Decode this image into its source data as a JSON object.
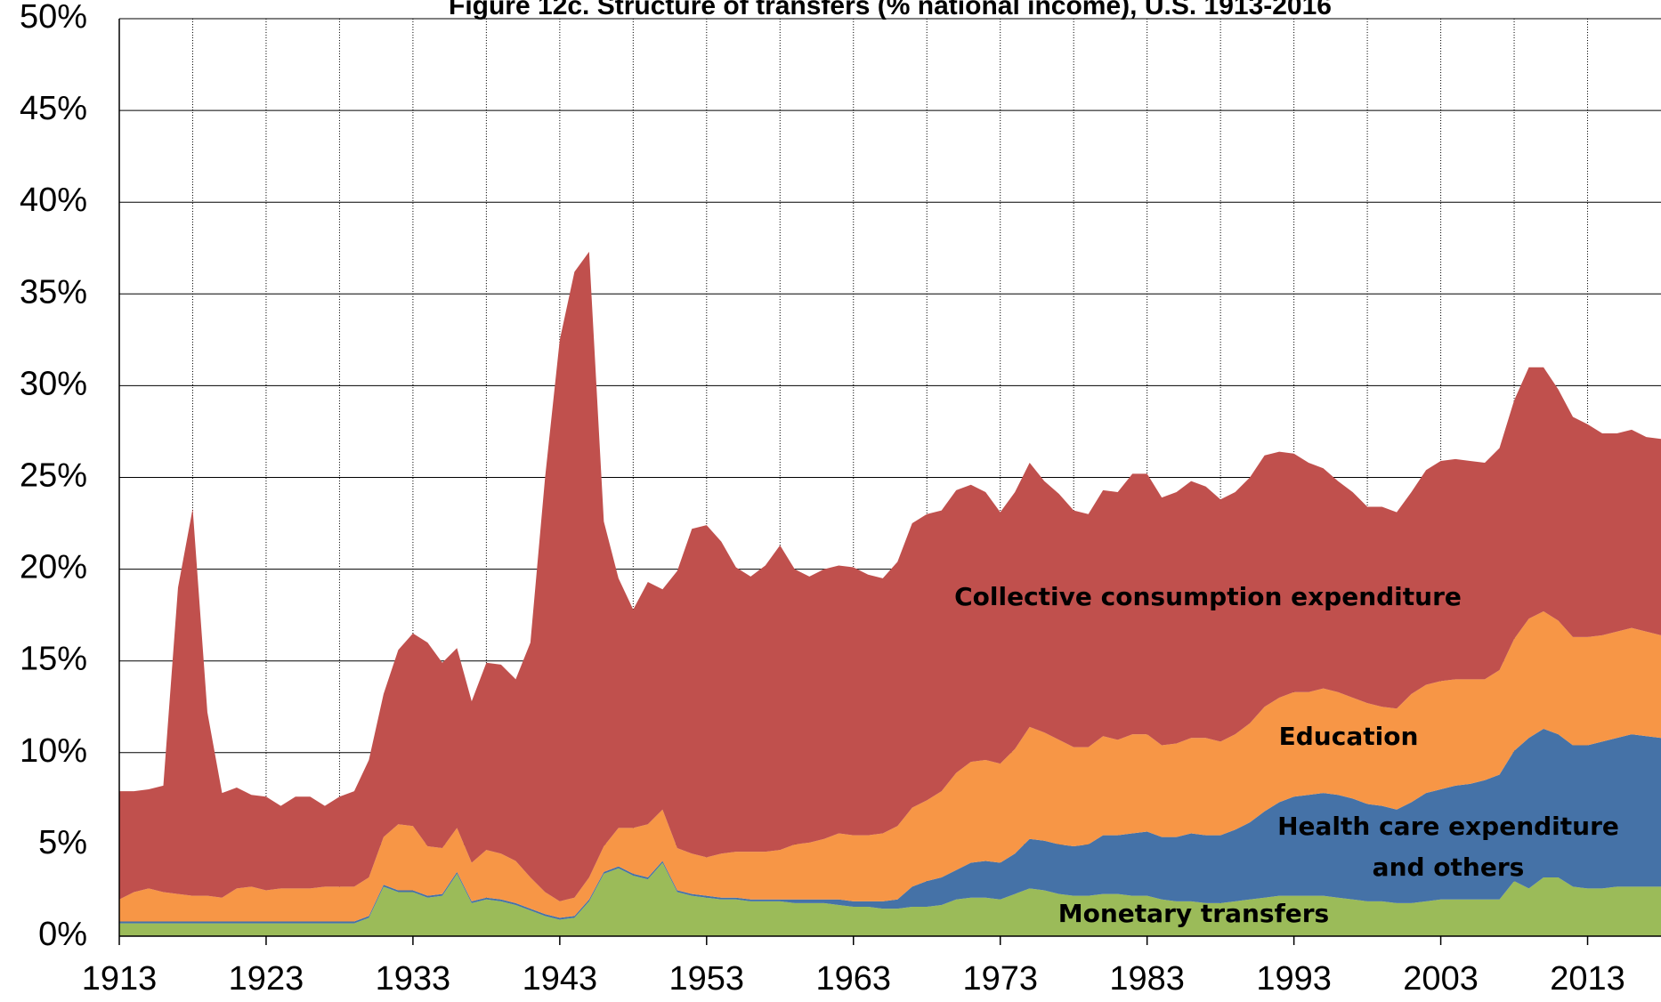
{
  "chart_data": {
    "type": "stacked_area",
    "title": "Figure 12c. Structure of transfers (% national income), U.S. 1913-2016",
    "x": [
      1913,
      1914,
      1915,
      1916,
      1917,
      1918,
      1919,
      1920,
      1921,
      1922,
      1923,
      1924,
      1925,
      1926,
      1927,
      1928,
      1929,
      1930,
      1931,
      1932,
      1933,
      1934,
      1935,
      1936,
      1937,
      1938,
      1939,
      1940,
      1941,
      1942,
      1943,
      1944,
      1945,
      1946,
      1947,
      1948,
      1949,
      1950,
      1951,
      1952,
      1953,
      1954,
      1955,
      1956,
      1957,
      1958,
      1959,
      1960,
      1961,
      1962,
      1963,
      1964,
      1965,
      1966,
      1967,
      1968,
      1969,
      1970,
      1971,
      1972,
      1973,
      1974,
      1975,
      1976,
      1977,
      1978,
      1979,
      1980,
      1981,
      1982,
      1983,
      1984,
      1985,
      1986,
      1987,
      1988,
      1989,
      1990,
      1991,
      1992,
      1993,
      1994,
      1995,
      1996,
      1997,
      1998,
      1999,
      2000,
      2001,
      2002,
      2003,
      2004,
      2005,
      2006,
      2007,
      2008,
      2009,
      2010,
      2011,
      2012,
      2013,
      2014,
      2015,
      2016,
      2017,
      2018
    ],
    "series": [
      {
        "name": "Monetary transfers",
        "color": "#9bbb59",
        "values": [
          0.7,
          0.7,
          0.7,
          0.7,
          0.7,
          0.7,
          0.7,
          0.7,
          0.7,
          0.7,
          0.7,
          0.7,
          0.7,
          0.7,
          0.7,
          0.7,
          0.7,
          1.0,
          2.7,
          2.4,
          2.4,
          2.1,
          2.2,
          3.4,
          1.8,
          2.0,
          1.9,
          1.7,
          1.4,
          1.1,
          0.9,
          1.0,
          1.9,
          3.4,
          3.7,
          3.3,
          3.1,
          4.0,
          2.4,
          2.2,
          2.1,
          2.0,
          2.0,
          1.9,
          1.9,
          1.9,
          1.8,
          1.8,
          1.8,
          1.7,
          1.6,
          1.6,
          1.5,
          1.5,
          1.6,
          1.6,
          1.7,
          2.0,
          2.1,
          2.1,
          2.0,
          2.3,
          2.6,
          2.5,
          2.3,
          2.2,
          2.2,
          2.3,
          2.3,
          2.2,
          2.2,
          2.0,
          1.9,
          1.9,
          1.8,
          1.8,
          1.9,
          2.0,
          2.1,
          2.2,
          2.2,
          2.2,
          2.2,
          2.1,
          2.0,
          1.9,
          1.9,
          1.8,
          1.8,
          1.9,
          2.0,
          2.0,
          2.0,
          2.0,
          2.0,
          3.0,
          2.6,
          3.2,
          3.2,
          2.7,
          2.6,
          2.6,
          2.7,
          2.7,
          2.7,
          2.7
        ]
      },
      {
        "name": "Health care expenditure and others",
        "color": "#4572a7",
        "values": [
          0.1,
          0.1,
          0.1,
          0.1,
          0.1,
          0.1,
          0.1,
          0.1,
          0.1,
          0.1,
          0.1,
          0.1,
          0.1,
          0.1,
          0.1,
          0.1,
          0.1,
          0.1,
          0.1,
          0.1,
          0.1,
          0.1,
          0.1,
          0.1,
          0.1,
          0.1,
          0.1,
          0.1,
          0.1,
          0.1,
          0.1,
          0.1,
          0.1,
          0.1,
          0.1,
          0.1,
          0.1,
          0.1,
          0.1,
          0.1,
          0.1,
          0.1,
          0.1,
          0.1,
          0.1,
          0.1,
          0.2,
          0.2,
          0.2,
          0.3,
          0.3,
          0.3,
          0.4,
          0.5,
          1.1,
          1.4,
          1.5,
          1.6,
          1.9,
          2.0,
          2.0,
          2.2,
          2.7,
          2.7,
          2.7,
          2.7,
          2.8,
          3.2,
          3.2,
          3.4,
          3.5,
          3.4,
          3.5,
          3.7,
          3.7,
          3.7,
          3.9,
          4.2,
          4.7,
          5.1,
          5.4,
          5.5,
          5.6,
          5.6,
          5.5,
          5.3,
          5.2,
          5.1,
          5.5,
          5.9,
          6.0,
          6.2,
          6.3,
          6.5,
          6.8,
          7.1,
          8.2,
          8.1,
          7.8,
          7.7,
          7.8,
          8.0,
          8.1,
          8.3,
          8.2,
          8.1
        ]
      },
      {
        "name": "Education",
        "color": "#f79646",
        "values": [
          1.2,
          1.6,
          1.8,
          1.6,
          1.5,
          1.4,
          1.4,
          1.3,
          1.8,
          1.9,
          1.7,
          1.8,
          1.8,
          1.8,
          1.9,
          1.9,
          1.9,
          2.1,
          2.6,
          3.6,
          3.5,
          2.7,
          2.5,
          2.4,
          2.1,
          2.6,
          2.5,
          2.3,
          1.7,
          1.2,
          0.9,
          1.0,
          1.2,
          1.4,
          2.1,
          2.5,
          2.9,
          2.8,
          2.3,
          2.2,
          2.1,
          2.4,
          2.5,
          2.6,
          2.6,
          2.7,
          3.0,
          3.1,
          3.3,
          3.6,
          3.6,
          3.6,
          3.7,
          4.0,
          4.3,
          4.4,
          4.7,
          5.3,
          5.5,
          5.5,
          5.4,
          5.7,
          6.1,
          5.9,
          5.7,
          5.4,
          5.3,
          5.4,
          5.2,
          5.4,
          5.3,
          5.0,
          5.1,
          5.2,
          5.3,
          5.1,
          5.2,
          5.4,
          5.7,
          5.7,
          5.7,
          5.6,
          5.7,
          5.6,
          5.5,
          5.5,
          5.4,
          5.5,
          5.9,
          5.9,
          5.9,
          5.8,
          5.7,
          5.5,
          5.7,
          6.1,
          6.5,
          6.4,
          6.2,
          5.9,
          5.9,
          5.8,
          5.8,
          5.8,
          5.7,
          5.6
        ]
      },
      {
        "name": "Collective consumption expenditure",
        "color": "#c0504d",
        "values": [
          5.9,
          5.5,
          5.4,
          5.8,
          16.7,
          21.1,
          10.0,
          5.7,
          5.5,
          5.0,
          5.1,
          4.5,
          5.0,
          5.0,
          4.4,
          4.9,
          5.2,
          6.4,
          7.8,
          9.5,
          10.5,
          11.1,
          10.1,
          9.8,
          8.8,
          10.2,
          10.3,
          9.9,
          12.8,
          22.6,
          30.6,
          34.1,
          34.1,
          17.7,
          13.6,
          11.9,
          13.2,
          12.0,
          15.1,
          17.7,
          18.1,
          17.0,
          15.5,
          15.0,
          15.6,
          16.6,
          15.0,
          14.5,
          14.7,
          14.6,
          14.6,
          14.2,
          13.9,
          14.4,
          15.5,
          15.6,
          15.3,
          15.4,
          15.1,
          14.6,
          13.7,
          14.0,
          14.4,
          13.7,
          13.4,
          12.9,
          12.7,
          13.4,
          13.5,
          14.2,
          14.2,
          13.5,
          13.7,
          14.0,
          13.7,
          13.2,
          13.2,
          13.4,
          13.7,
          13.4,
          13.0,
          12.5,
          12.0,
          11.5,
          11.2,
          10.7,
          10.9,
          10.7,
          11.0,
          11.7,
          12.0,
          12.0,
          11.9,
          11.8,
          12.1,
          13.0,
          13.7,
          13.3,
          12.6,
          12.0,
          11.6,
          11.0,
          10.8,
          10.8,
          10.6,
          10.7
        ]
      }
    ],
    "annotations": [
      "Collective consumption expenditure",
      "Education",
      "Health care expenditure",
      "and others",
      "Monetary transfers"
    ],
    "xlim": [
      1913,
      2018
    ],
    "xticks": [
      1913,
      1923,
      1933,
      1943,
      1953,
      1963,
      1973,
      1983,
      1993,
      2003,
      2013
    ],
    "ylim": [
      0,
      50
    ],
    "yticks": [
      {
        "value": 0,
        "label": "0%"
      },
      {
        "value": 5,
        "label": "5%"
      },
      {
        "value": 10,
        "label": "10%"
      },
      {
        "value": 15,
        "label": "15%"
      },
      {
        "value": 20,
        "label": "20%"
      },
      {
        "value": 25,
        "label": "25%"
      },
      {
        "value": 30,
        "label": "30%"
      },
      {
        "value": 35,
        "label": "35%"
      },
      {
        "value": 40,
        "label": "40%"
      },
      {
        "value": 45,
        "label": "45%"
      },
      {
        "value": 50,
        "label": "50%"
      }
    ],
    "grid": true
  }
}
